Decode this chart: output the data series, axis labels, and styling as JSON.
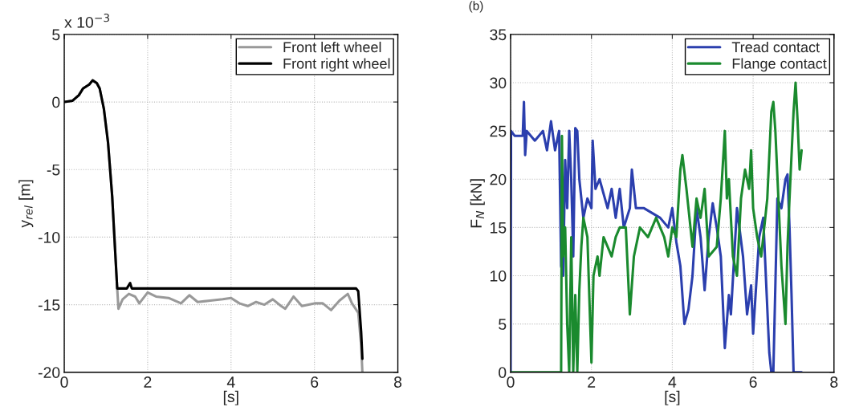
{
  "chart_data": [
    {
      "type": "line",
      "xlabel": "[s]",
      "ylabel": "y$_{rel}$ [m]",
      "annotations": [
        "x 10$^{−3}$"
      ],
      "xlim": [
        0,
        8
      ],
      "xticks": [
        0,
        2,
        4,
        6,
        8
      ],
      "ylim": [
        -20,
        5
      ],
      "yticks": [
        -20,
        -15,
        -10,
        -5,
        0,
        5
      ],
      "grid": true,
      "legend": "top right",
      "series": [
        {
          "name": "Front left wheel",
          "color": "#999999",
          "x": [
            0,
            0.2,
            0.35,
            0.45,
            0.6,
            0.68,
            0.78,
            0.85,
            0.95,
            1.05,
            1.15,
            1.22,
            1.27,
            1.3,
            1.4,
            1.55,
            1.7,
            1.8,
            2.0,
            2.2,
            2.5,
            2.8,
            3.0,
            3.2,
            3.5,
            3.8,
            4.0,
            4.2,
            4.4,
            4.6,
            4.8,
            5.0,
            5.2,
            5.3,
            5.5,
            5.7,
            6.0,
            6.2,
            6.4,
            6.6,
            6.8,
            6.9,
            7.05,
            7.12,
            7.15
          ],
          "values": [
            0,
            0.1,
            0.5,
            1.0,
            1.3,
            1.6,
            1.4,
            1.0,
            -0.5,
            -3,
            -7,
            -11,
            -13.8,
            -15.3,
            -14.6,
            -14.2,
            -14.4,
            -14.9,
            -14.1,
            -14.4,
            -14.5,
            -14.9,
            -14.3,
            -14.8,
            -14.7,
            -14.6,
            -14.5,
            -14.9,
            -15.1,
            -14.8,
            -15.0,
            -14.6,
            -15.1,
            -15.3,
            -14.4,
            -15.1,
            -14.9,
            -14.9,
            -15.4,
            -14.7,
            -14.2,
            -14.9,
            -15.6,
            -18,
            -20
          ]
        },
        {
          "name": "Front right wheel",
          "color": "#000000",
          "x": [
            0,
            0.2,
            0.35,
            0.45,
            0.6,
            0.68,
            0.78,
            0.85,
            0.95,
            1.05,
            1.15,
            1.22,
            1.27,
            1.5,
            1.58,
            1.62,
            2.5,
            4.0,
            5.5,
            7.0,
            7.05,
            7.12,
            7.15
          ],
          "values": [
            0,
            0.1,
            0.5,
            1.0,
            1.3,
            1.6,
            1.4,
            1.0,
            -0.5,
            -3,
            -7,
            -11,
            -13.8,
            -13.8,
            -13.4,
            -13.8,
            -13.8,
            -13.8,
            -13.8,
            -13.8,
            -14,
            -17,
            -19
          ]
        }
      ]
    },
    {
      "type": "line",
      "title": "(b)",
      "xlabel": "[s]",
      "ylabel": "F$_{N}$ [kN]",
      "xlim": [
        0,
        8
      ],
      "xticks": [
        0,
        2,
        4,
        6,
        8
      ],
      "ylim": [
        0,
        35
      ],
      "yticks": [
        0,
        5,
        10,
        15,
        20,
        25,
        30,
        35
      ],
      "grid": true,
      "legend": "top right",
      "series": [
        {
          "name": "Tread contact",
          "color": "#2b3fae",
          "x": [
            0,
            0.01,
            0.1,
            0.3,
            0.33,
            0.36,
            0.4,
            0.6,
            0.8,
            0.9,
            1.0,
            1.1,
            1.2,
            1.25,
            1.3,
            1.35,
            1.4,
            1.45,
            1.5,
            1.55,
            1.6,
            1.65,
            1.7,
            1.8,
            1.9,
            2.0,
            2.03,
            2.1,
            2.2,
            2.4,
            2.5,
            2.6,
            2.7,
            2.8,
            2.95,
            3.0,
            3.1,
            3.3,
            3.5,
            3.7,
            3.9,
            4.0,
            4.1,
            4.2,
            4.3,
            4.4,
            4.5,
            4.6,
            4.7,
            4.8,
            4.9,
            5.0,
            5.1,
            5.2,
            5.3,
            5.4,
            5.45,
            5.6,
            5.75,
            5.85,
            5.95,
            6.0,
            6.15,
            6.25,
            6.4,
            6.45,
            6.5,
            6.6,
            6.7,
            6.8,
            6.85,
            6.9,
            6.95,
            7.0,
            7.2
          ],
          "values": [
            0,
            25,
            24.5,
            24.5,
            28,
            22.5,
            25,
            24,
            25,
            23,
            26,
            23,
            25,
            11,
            10,
            22,
            17,
            25,
            20,
            12,
            25.3,
            25,
            20,
            16,
            18,
            17,
            24,
            19,
            20,
            17,
            19,
            16,
            19,
            15,
            17,
            21,
            17,
            17,
            16.5,
            16,
            15,
            17,
            13.5,
            11,
            5,
            6.5,
            10,
            17,
            14,
            8.5,
            14,
            17.5,
            15,
            12,
            2.5,
            8,
            6,
            17,
            12,
            6,
            9,
            4,
            14,
            16,
            2,
            0,
            0,
            18,
            17,
            20,
            20.5,
            15,
            8,
            0,
            0
          ]
        },
        {
          "name": "Flange contact",
          "color": "#1a8a2e",
          "x": [
            0,
            1.25,
            1.27,
            1.3,
            1.35,
            1.4,
            1.45,
            1.5,
            1.55,
            1.6,
            1.65,
            1.7,
            1.75,
            1.8,
            1.9,
            2.0,
            2.05,
            2.15,
            2.2,
            2.3,
            2.4,
            2.5,
            2.6,
            2.7,
            2.85,
            2.95,
            3.05,
            3.2,
            3.4,
            3.6,
            3.8,
            3.9,
            4.0,
            4.1,
            4.2,
            4.25,
            4.35,
            4.5,
            4.6,
            4.7,
            4.8,
            4.9,
            5.1,
            5.2,
            5.3,
            5.35,
            5.4,
            5.5,
            5.6,
            5.7,
            5.8,
            5.9,
            5.95,
            6.0,
            6.1,
            6.2,
            6.35,
            6.45,
            6.5,
            6.55,
            6.7,
            6.8,
            6.85,
            6.9,
            7.0,
            7.05,
            7.1,
            7.15,
            7.2
          ],
          "values": [
            0,
            0,
            24.5,
            12,
            15,
            5,
            0,
            14,
            0,
            8,
            0,
            8.5,
            13,
            16,
            14,
            1,
            10,
            12,
            10,
            14,
            13,
            12,
            14,
            15,
            15,
            6,
            12,
            15,
            14,
            16,
            14,
            12,
            15,
            14,
            21,
            22.5,
            19,
            13,
            18,
            16,
            19,
            12,
            13,
            18,
            25,
            18,
            20,
            12,
            10,
            18,
            21,
            19,
            23,
            17,
            14,
            12,
            18,
            27,
            28,
            25,
            11,
            5,
            13,
            18,
            27,
            30,
            26,
            21,
            23
          ]
        }
      ]
    }
  ]
}
